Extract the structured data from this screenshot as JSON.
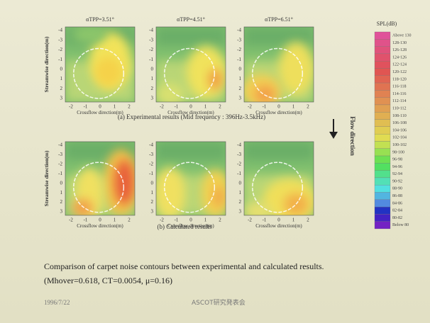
{
  "panels": {
    "titles": [
      "αTPP=3.51°",
      "αTPP=4.51°",
      "αTPP=6.51°"
    ],
    "y_label": "Streamwise direction(m)",
    "x_label": "Crossflow direction(m)",
    "caption_a": "(a) Experimental results (Mid frequency : 396Hz-3.5kHz)",
    "caption_b": "(b) Calculated results"
  },
  "axes": {
    "yticks": [
      "-4",
      "-3",
      "-2",
      "-1",
      "0",
      "1",
      "2",
      "3"
    ],
    "xticks": [
      "-2",
      "-1",
      "0",
      "1",
      "2"
    ]
  },
  "flow_label": "Flow direction",
  "legend": {
    "title": "SPL(dB)",
    "items": [
      "Above 130",
      "128-130",
      "126-128",
      "124-126",
      "122-124",
      "120-122",
      "118-120",
      "116-118",
      "114-116",
      "112-114",
      "110-112",
      "108-110",
      "106-108",
      "104-106",
      "102-104",
      "100-102",
      "98-100",
      "96-98",
      "94-96",
      "92-94",
      "90-92",
      "88-90",
      "86-88",
      "84-86",
      "82-84",
      "80-82",
      "Below 80"
    ]
  },
  "caption": {
    "line1": "Comparison of carpet noise contours between experimental and calculated results.",
    "line2": "(Mhover=0.618, CT=0.0054, μ=0.16)"
  },
  "footer": {
    "date": "1996/7/22",
    "event": "ASCOT研究発表会"
  }
}
